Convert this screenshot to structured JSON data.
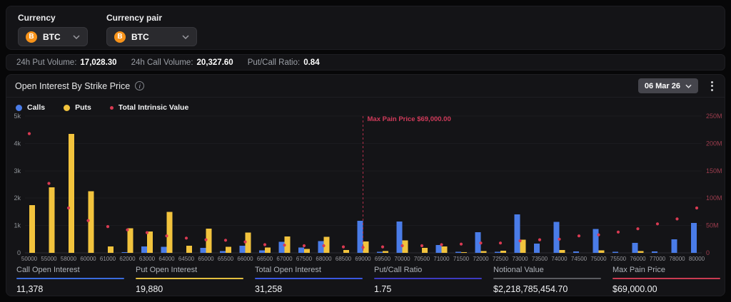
{
  "header": {
    "currency_label": "Currency",
    "currency_value": "BTC",
    "pair_label": "Currency pair",
    "pair_value": "BTC",
    "coin_symbol": "B",
    "info_glyph": "i"
  },
  "stats_bar": {
    "items": [
      {
        "label": "24h Put Volume:",
        "value": "17,028.30"
      },
      {
        "label": "24h Call Volume:",
        "value": "20,327.60"
      },
      {
        "label": "Put/Call Ratio:",
        "value": "0.84"
      }
    ]
  },
  "chart_panel": {
    "title": "Open Interest By Strike Price",
    "date_selector": "06 Mar 26"
  },
  "chart_data": {
    "type": "bar",
    "title": "Open Interest By Strike Price",
    "categories": [
      "50000",
      "55000",
      "58000",
      "60000",
      "61000",
      "62000",
      "63000",
      "64000",
      "64500",
      "65000",
      "65500",
      "66000",
      "66500",
      "67000",
      "67500",
      "68000",
      "68500",
      "69000",
      "69500",
      "70000",
      "70500",
      "71000",
      "71500",
      "72000",
      "72500",
      "73000",
      "73500",
      "74000",
      "74500",
      "75000",
      "75500",
      "76000",
      "77000",
      "78000",
      "80000"
    ],
    "series": [
      {
        "name": "Calls",
        "type": "bar",
        "axis": "left",
        "color": "#4a7ce8",
        "values": [
          0,
          0,
          0,
          0,
          0,
          30,
          240,
          225,
          0,
          180,
          70,
          260,
          85,
          400,
          200,
          430,
          0,
          1170,
          40,
          1150,
          0,
          280,
          40,
          760,
          40,
          1410,
          340,
          1130,
          50,
          870,
          40,
          360,
          50,
          490,
          1090
        ]
      },
      {
        "name": "Puts",
        "type": "bar",
        "axis": "left",
        "color": "#f2c33d",
        "values": [
          1750,
          2400,
          4350,
          2250,
          230,
          900,
          780,
          1500,
          260,
          890,
          215,
          740,
          200,
          600,
          140,
          590,
          110,
          420,
          60,
          460,
          180,
          230,
          30,
          70,
          80,
          480,
          0,
          110,
          0,
          90,
          0,
          60,
          0,
          0,
          0
        ]
      },
      {
        "name": "Total Intrinsic Value",
        "type": "scatter",
        "axis": "right",
        "color": "#d93a52",
        "values": [
          218,
          127,
          82,
          59,
          48,
          42,
          37,
          31,
          27,
          24,
          23,
          20,
          15,
          14,
          13,
          13,
          11,
          10,
          11,
          13,
          13,
          15,
          16,
          18,
          18,
          22,
          24,
          25,
          31,
          33,
          38,
          44,
          53,
          62,
          82
        ]
      }
    ],
    "left_axis": {
      "ticks": [
        "0",
        "1k",
        "2k",
        "3k",
        "4k",
        "5k"
      ],
      "max": 5000
    },
    "right_axis": {
      "ticks": [
        "0",
        "50M",
        "100M",
        "150M",
        "200M",
        "250M"
      ],
      "max": 250
    },
    "annotation": {
      "label": "Max Pain Price $69,000.00",
      "strike": "69000",
      "color": "#b02e49"
    },
    "grid": true,
    "legend_position": "top-left"
  },
  "summary": {
    "items": [
      {
        "label": "Call Open Interest",
        "value": "11,378",
        "color": "#3a6bdc"
      },
      {
        "label": "Put Open Interest",
        "value": "19,880",
        "color": "#e3bf3f"
      },
      {
        "label": "Total Open Interest",
        "value": "31,258",
        "color": "#3a57e0"
      },
      {
        "label": "Put/Call Ratio",
        "value": "1.75",
        "color": "#3d3ac0"
      },
      {
        "label": "Notional Value",
        "value": "$2,218,785,454.70",
        "color": "#5a5b60"
      },
      {
        "label": "Max Pain Price",
        "value": "$69,000.00",
        "color": "#c93b52"
      }
    ]
  }
}
